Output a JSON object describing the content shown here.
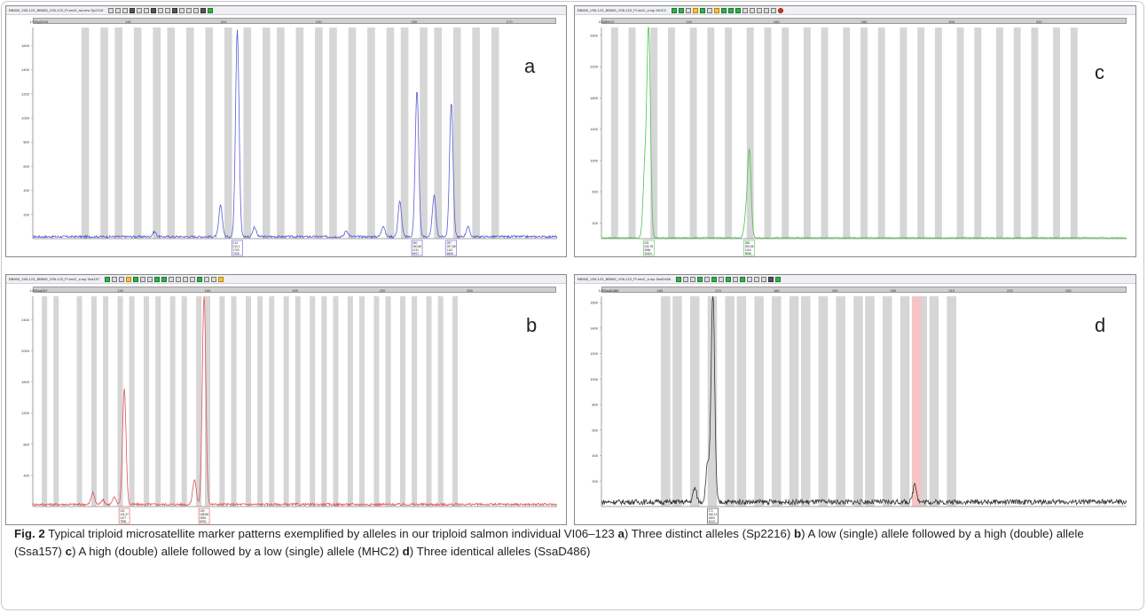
{
  "colors": {
    "bin": "#d6d6d6",
    "bin_highlight": "#f6c4c4",
    "trace_a": "#5b5bd6",
    "trace_b": "#e05555",
    "trace_c": "#4cc24c",
    "trace_d": "#333333",
    "grid": "#d9d9d9"
  },
  "panels": [
    {
      "id": "a",
      "toolbar_title": "BB665_V06-123_BB665_V06-123_Pl.mix3_aa.new Sp2216",
      "toolbar_icons": [
        "grey",
        "grey",
        "grey",
        "dark",
        "grey",
        "grey",
        "dark",
        "grey",
        "grey",
        "dark",
        "grey",
        "grey",
        "grey",
        "dark",
        "green"
      ],
      "marker": "Sp2216",
      "letter": "a",
      "trace_color": "#5b5bd6",
      "chart_data": {
        "type": "line",
        "xlim": [
          170,
          280
        ],
        "ylim": [
          0,
          1750
        ],
        "x_ticks": [
          170,
          190,
          210,
          230,
          250,
          270
        ],
        "y_ticks": [
          200,
          400,
          600,
          800,
          1000,
          1200,
          1400,
          1600
        ],
        "bins": [
          181,
          185,
          188,
          192,
          196,
          199,
          203,
          207,
          211,
          215,
          219,
          222,
          226,
          230,
          233,
          237,
          241,
          245,
          248,
          252,
          255,
          259,
          263,
          267
        ],
        "highlight_bins": [],
        "peaks": [
          {
            "x": 209.4,
            "h": 260
          },
          {
            "x": 212.9,
            "h": 1720
          },
          {
            "x": 216.5,
            "h": 80
          },
          {
            "x": 247.0,
            "h": 290
          },
          {
            "x": 250.6,
            "h": 1210
          },
          {
            "x": 254.2,
            "h": 340
          },
          {
            "x": 257.8,
            "h": 1110
          },
          {
            "x": 261.3,
            "h": 80
          },
          {
            "x": 243.5,
            "h": 90
          },
          {
            "x": 235.8,
            "h": 50
          },
          {
            "x": 195.5,
            "h": 40
          }
        ],
        "noise": 18,
        "allele_labels": [
          {
            "x": 212.9,
            "lines": [
              "213",
              "213.1",
              "1720",
              "7325"
            ]
          },
          {
            "x": 250.6,
            "lines": [
              "250",
              "250.68",
              "1211",
              "6917"
            ]
          },
          {
            "x": 257.8,
            "lines": [
              "257",
              "257.88",
              "1110",
              "6646"
            ]
          }
        ]
      }
    },
    {
      "id": "b",
      "toolbar_title": "BB665_V06-123_BB665_V06-123_Pl.mix2_a.mp   Ssa157",
      "toolbar_icons": [
        "green",
        "grey",
        "grey",
        "warn",
        "green",
        "grey",
        "grey",
        "green",
        "green",
        "grey",
        "grey",
        "grey",
        "grey",
        "green",
        "grey",
        "grey",
        "warn"
      ],
      "marker": "Ssa157",
      "letter": "b",
      "trace_color": "#e05555",
      "chart_data": {
        "type": "line",
        "xlim": [
          100,
          280
        ],
        "ylim": [
          0,
          2700
        ],
        "x_ticks": [
          100,
          130,
          160,
          190,
          220,
          250
        ],
        "y_ticks": [
          400,
          800,
          1200,
          1600,
          2000,
          2400
        ],
        "bins": [
          104,
          108,
          116,
          121,
          125,
          130,
          134,
          139,
          143,
          148,
          152,
          157,
          160,
          165,
          169,
          174,
          178,
          182,
          187,
          191,
          196,
          200,
          204,
          209,
          213,
          218,
          222,
          227,
          231,
          236,
          240,
          245
        ],
        "highlight_bins": [],
        "peaks": [
          {
            "x": 120.6,
            "h": 150
          },
          {
            "x": 128.0,
            "h": 90
          },
          {
            "x": 131.4,
            "h": 1480
          },
          {
            "x": 155.5,
            "h": 320
          },
          {
            "x": 158.8,
            "h": 2700
          },
          {
            "x": 124.0,
            "h": 60
          }
        ],
        "noise": 30,
        "allele_labels": [
          {
            "x": 131.4,
            "lines": [
              "131",
              "131.47",
              "1477",
              "7595"
            ]
          },
          {
            "x": 158.8,
            "lines": [
              "159",
              "158.86",
              "2694",
              "6976"
            ]
          }
        ]
      }
    },
    {
      "id": "c",
      "toolbar_title": "BB665_V06-123_BB665_V06-123_Pl.mix2_a.mp   MHC2",
      "toolbar_icons": [
        "green",
        "green",
        "grey",
        "warn",
        "green",
        "grey",
        "warn",
        "green",
        "green",
        "green",
        "grey",
        "grey",
        "grey",
        "grey",
        "grey",
        "red"
      ],
      "marker": "MHC2",
      "letter": "c",
      "trace_color": "#4cc24c",
      "chart_data": {
        "type": "line",
        "xlim": [
          220,
          340
        ],
        "ylim": [
          0,
          2700
        ],
        "x_ticks": [
          220,
          240,
          260,
          280,
          300,
          320
        ],
        "y_ticks": [
          200,
          600,
          1000,
          1400,
          1800,
          2200,
          2600
        ],
        "bins": [
          223,
          227,
          232,
          236,
          241,
          245,
          249,
          254,
          258,
          262,
          267,
          271,
          276,
          280,
          284,
          289,
          293,
          297,
          302,
          306,
          311,
          315,
          319,
          324,
          328
        ],
        "highlight_bins": [],
        "peaks": [
          {
            "x": 230.8,
            "h": 2700
          },
          {
            "x": 229.9,
            "h": 850
          },
          {
            "x": 253.8,
            "h": 1100
          },
          {
            "x": 253.0,
            "h": 260
          }
        ],
        "noise": 12,
        "allele_labels": [
          {
            "x": 230.8,
            "lines": [
              "231",
              "230.78",
              "2684",
              "11624"
            ]
          },
          {
            "x": 253.8,
            "lines": [
              "255",
              "253.85",
              "1104",
              "9056"
            ]
          }
        ]
      }
    },
    {
      "id": "d",
      "toolbar_title": "BB665_V06-123_BB665_V06-123_Pl.mix2_a.mp   SsaD486",
      "toolbar_icons": [
        "green",
        "grey",
        "grey",
        "green",
        "grey",
        "green",
        "grey",
        "green",
        "grey",
        "green",
        "grey",
        "grey",
        "grey",
        "dark",
        "green"
      ],
      "marker": "SsaD486",
      "letter": "d",
      "trace_color": "#333333",
      "chart_data": {
        "type": "line",
        "xlim": [
          150,
          240
        ],
        "ylim": [
          0,
          1650
        ],
        "x_ticks": [
          150,
          160,
          170,
          180,
          190,
          200,
          210,
          220,
          230
        ],
        "y_ticks": [
          200,
          400,
          600,
          800,
          1000,
          1200,
          1400,
          1600
        ],
        "bins": [
          161,
          163,
          166,
          169,
          172,
          174,
          177,
          180,
          183,
          185,
          188,
          191,
          194,
          196,
          199,
          202,
          205,
          207,
          210
        ],
        "highlight_bins": [
          204
        ],
        "peaks": [
          {
            "x": 169.1,
            "h": 1650
          },
          {
            "x": 168.2,
            "h": 300
          },
          {
            "x": 166.0,
            "h": 110
          },
          {
            "x": 203.7,
            "h": 150
          }
        ],
        "noise": 40,
        "allele_labels": [
          {
            "x": 169.1,
            "lines": [
              "171",
              "169.13",
              "1650",
              "4013"
            ]
          }
        ]
      }
    }
  ],
  "caption": {
    "fig_label": "Fig. 2",
    "text_intro": " Typical triploid microsatellite marker patterns exemplified by alleles in our triploid salmon individual VI06–123 ",
    "label_a": "a",
    "text_a": ") Three distinct alleles (Sp2216) ",
    "label_b": "b",
    "text_b": ") A low (single) allele followed by a high (double) allele (Ssa157) ",
    "label_c": "c",
    "text_c": ") A high (double) allele followed by a low (single) allele (MHC2) ",
    "label_d": "d",
    "text_d": ") Three identical alleles (SsaD486)"
  }
}
